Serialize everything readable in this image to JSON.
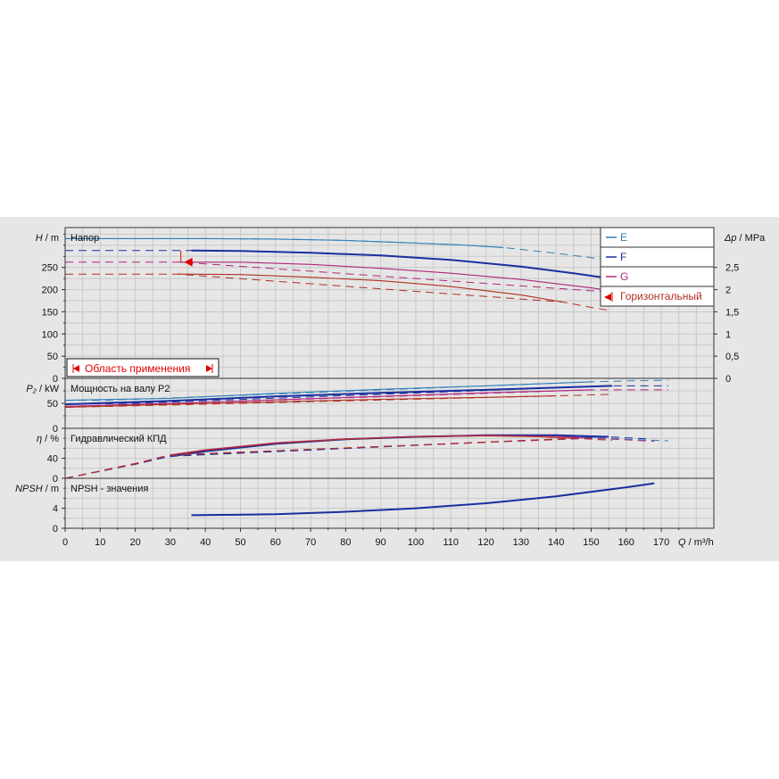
{
  "colors": {
    "E": "#2f7fb8",
    "F": "#1a2f9e",
    "G": "#b0257a",
    "H": "#b03020",
    "grid": "#c8c8c8",
    "marker": "#e00000",
    "panel_bg": "#e6e6e6"
  },
  "chart_data": {
    "type": "line",
    "x_axis": {
      "label_symbol": "Q",
      "label_unit": "m³/h",
      "min": 0,
      "max": 185,
      "ticks": [
        0,
        10,
        20,
        30,
        40,
        50,
        60,
        70,
        80,
        90,
        100,
        110,
        120,
        130,
        140,
        150,
        160,
        170
      ]
    },
    "legend": {
      "placement": "top-right",
      "entries": [
        {
          "key": "E",
          "label": "E"
        },
        {
          "key": "F",
          "label": "F"
        },
        {
          "key": "G",
          "label": "G"
        },
        {
          "key": "H",
          "label": "Горизонтальный"
        }
      ]
    },
    "range_label": "Область применения",
    "panels": [
      {
        "id": "head",
        "title": "Напор",
        "ylabel_symbol": "H",
        "ylabel_unit": "m",
        "ylim": [
          0,
          340
        ],
        "yticks": [
          0,
          50,
          100,
          150,
          200,
          250
        ],
        "right_axis": {
          "label_symbol": "Δp",
          "label_unit": "MPa",
          "ticks": [
            {
              "h": 0,
              "label": "0"
            },
            {
              "h": 50,
              "label": "0,5"
            },
            {
              "h": 100,
              "label": "1"
            },
            {
              "h": 150,
              "label": "1,5"
            },
            {
              "h": 200,
              "label": "2"
            },
            {
              "h": 250,
              "label": "2,5"
            }
          ]
        },
        "series": [
          {
            "key": "E",
            "solid": [
              [
                0,
                315
              ],
              [
                20,
                315
              ],
              [
                40,
                315
              ],
              [
                60,
                314
              ],
              [
                80,
                311
              ],
              [
                100,
                305
              ],
              [
                115,
                300
              ],
              [
                125,
                295
              ]
            ],
            "dashed": [
              [
                0,
                315
              ],
              [
                20,
                315
              ],
              [
                40,
                315
              ],
              [
                60,
                314
              ],
              [
                80,
                311
              ],
              [
                100,
                305
              ],
              [
                115,
                300
              ],
              [
                125,
                295
              ],
              [
                140,
                282
              ],
              [
                150,
                272
              ],
              [
                156,
                265
              ]
            ]
          },
          {
            "key": "F",
            "solid": [
              [
                36,
                288
              ],
              [
                50,
                287
              ],
              [
                70,
                283
              ],
              [
                90,
                277
              ],
              [
                110,
                267
              ],
              [
                130,
                252
              ],
              [
                145,
                237
              ],
              [
                153,
                228
              ]
            ],
            "dashed": [
              [
                0,
                288
              ],
              [
                20,
                288
              ],
              [
                36,
                288
              ]
            ]
          },
          {
            "key": "G",
            "solid": [
              [
                33,
                262
              ],
              [
                50,
                262
              ],
              [
                70,
                257
              ],
              [
                90,
                248
              ],
              [
                110,
                237
              ],
              [
                130,
                223
              ],
              [
                150,
                204
              ],
              [
                160,
                192
              ]
            ],
            "dashed": [
              [
                0,
                262
              ],
              [
                20,
                262
              ],
              [
                33,
                262
              ],
              [
                160,
                192
              ],
              [
                170,
                178
              ]
            ]
          },
          {
            "key": "H",
            "solid": [
              [
                32,
                235
              ],
              [
                50,
                234
              ],
              [
                70,
                228
              ],
              [
                90,
                220
              ],
              [
                110,
                207
              ],
              [
                130,
                188
              ],
              [
                142,
                172
              ]
            ],
            "dashed": [
              [
                0,
                235
              ],
              [
                20,
                235
              ],
              [
                32,
                235
              ],
              [
                142,
                172
              ],
              [
                150,
                160
              ],
              [
                156,
                152
              ]
            ]
          }
        ]
      },
      {
        "id": "power",
        "title": "Мощность на валу P2",
        "ylabel_symbol": "P₂",
        "ylabel_unit": "kW",
        "ylim": [
          0,
          100
        ],
        "yticks": [
          0,
          50
        ],
        "series": [
          {
            "key": "E",
            "solid": [
              [
                0,
                56
              ],
              [
                30,
                60
              ],
              [
                60,
                70
              ],
              [
                90,
                78
              ],
              [
                120,
                85
              ],
              [
                150,
                93
              ]
            ],
            "dashed": [
              [
                0,
                56
              ],
              [
                10,
                56
              ],
              [
                20,
                58
              ],
              [
                150,
                93
              ],
              [
                160,
                95
              ],
              [
                172,
                96
              ]
            ]
          },
          {
            "key": "F",
            "solid": [
              [
                0,
                48
              ],
              [
                30,
                55
              ],
              [
                60,
                64
              ],
              [
                90,
                71
              ],
              [
                120,
                77
              ],
              [
                156,
                85
              ]
            ],
            "dashed": [
              [
                0,
                48
              ],
              [
                20,
                50
              ],
              [
                156,
                85
              ],
              [
                172,
                85
              ]
            ]
          },
          {
            "key": "G",
            "solid": [
              [
                0,
                44
              ],
              [
                30,
                50
              ],
              [
                60,
                57
              ],
              [
                90,
                64
              ],
              [
                120,
                71
              ],
              [
                150,
                77
              ]
            ],
            "dashed": [
              [
                0,
                44
              ],
              [
                20,
                47
              ],
              [
                150,
                77
              ],
              [
                172,
                77
              ]
            ]
          },
          {
            "key": "H",
            "solid": [
              [
                0,
                42
              ],
              [
                30,
                48
              ],
              [
                60,
                53
              ],
              [
                90,
                58
              ],
              [
                120,
                62
              ],
              [
                140,
                65
              ]
            ],
            "dashed": [
              [
                0,
                42
              ],
              [
                20,
                45
              ],
              [
                140,
                65
              ],
              [
                156,
                68
              ]
            ]
          }
        ]
      },
      {
        "id": "efficiency",
        "title": "Гидравлический КПД",
        "ylabel_symbol": "η",
        "ylabel_unit": "%",
        "ylim": [
          0,
          100
        ],
        "yticks": [
          0,
          40
        ],
        "series": [
          {
            "key": "E",
            "solid": [
              [
                30,
                45
              ],
              [
                40,
                55
              ],
              [
                60,
                70
              ],
              [
                80,
                78
              ],
              [
                100,
                83
              ],
              [
                120,
                86
              ],
              [
                140,
                85
              ],
              [
                152,
                82
              ]
            ],
            "dashed": [
              [
                0,
                0
              ],
              [
                10,
                14
              ],
              [
                20,
                28
              ],
              [
                30,
                45
              ],
              [
                152,
                82
              ],
              [
                160,
                78
              ],
              [
                172,
                75
              ]
            ]
          },
          {
            "key": "F",
            "solid": [
              [
                30,
                44
              ],
              [
                40,
                54
              ],
              [
                60,
                69
              ],
              [
                80,
                78
              ],
              [
                100,
                83
              ],
              [
                120,
                86
              ],
              [
                140,
                86
              ],
              [
                155,
                83
              ]
            ],
            "dashed": [
              [
                0,
                0
              ],
              [
                10,
                14
              ],
              [
                20,
                28
              ],
              [
                30,
                44
              ],
              [
                155,
                83
              ],
              [
                166,
                79
              ]
            ]
          },
          {
            "key": "G",
            "solid": [
              [
                30,
                47
              ],
              [
                40,
                57
              ],
              [
                60,
                71
              ],
              [
                80,
                79
              ],
              [
                100,
                84
              ],
              [
                120,
                86
              ],
              [
                140,
                84
              ],
              [
                150,
                80
              ]
            ],
            "dashed": [
              [
                0,
                0
              ],
              [
                10,
                15
              ],
              [
                20,
                30
              ],
              [
                30,
                47
              ],
              [
                150,
                80
              ],
              [
                160,
                77
              ],
              [
                168,
                74
              ]
            ]
          },
          {
            "key": "H",
            "solid": [
              [
                30,
                46
              ],
              [
                40,
                56
              ],
              [
                60,
                70
              ],
              [
                80,
                78
              ],
              [
                100,
                83
              ],
              [
                120,
                85
              ],
              [
                135,
                83
              ],
              [
                145,
                80
              ]
            ],
            "dashed": [
              [
                0,
                0
              ],
              [
                10,
                14
              ],
              [
                20,
                29
              ],
              [
                30,
                46
              ],
              [
                145,
                80
              ],
              [
                156,
                76
              ]
            ]
          }
        ]
      },
      {
        "id": "npsh",
        "title": "NPSH - значения",
        "ylabel_symbol": "NPSH",
        "ylabel_unit": "m",
        "ylim": [
          0,
          10
        ],
        "yticks": [
          0,
          4
        ],
        "series": [
          {
            "key": "F",
            "solid": [
              [
                36,
                2.6
              ],
              [
                60,
                2.8
              ],
              [
                80,
                3.3
              ],
              [
                100,
                4.0
              ],
              [
                120,
                5.0
              ],
              [
                140,
                6.4
              ],
              [
                160,
                8.2
              ],
              [
                168,
                9.0
              ]
            ],
            "dashed": []
          }
        ]
      }
    ]
  }
}
